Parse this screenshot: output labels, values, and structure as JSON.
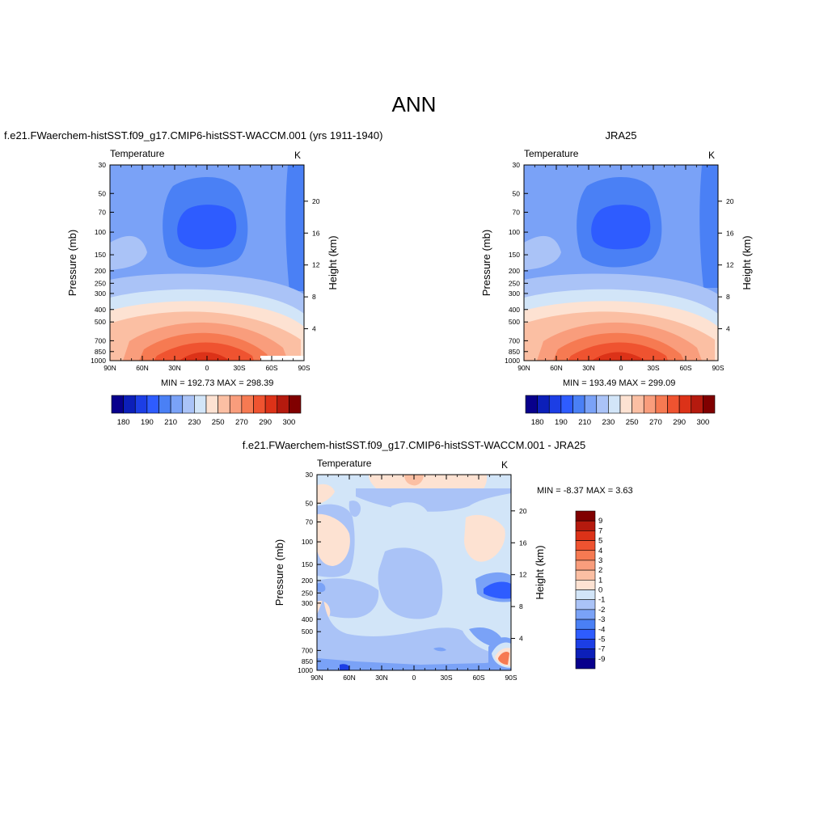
{
  "figure": {
    "title": "ANN"
  },
  "panels": [
    {
      "title": "f.e21.FWaerchem-histSST.f09_g17.CMIP6-histSST-WACCM.001 (yrs 1911-1940)",
      "variable": "Temperature",
      "units": "K",
      "min_max": "MIN = 192.73  MAX = 298.39"
    },
    {
      "title": "JRA25",
      "variable": "Temperature",
      "units": "K",
      "min_max": "MIN = 193.49  MAX = 299.09"
    },
    {
      "title": "f.e21.FWaerchem-histSST.f09_g17.CMIP6-histSST-WACCM.001 - JRA25",
      "variable": "Temperature",
      "units": "K",
      "min_max": "MIN =  -8.37  MAX =   3.63"
    }
  ],
  "chart_data": [
    {
      "type": "heatmap",
      "title": "Temperature",
      "units": "K",
      "xlabel": "",
      "ylabel": "Pressure (mb)",
      "ylabel_right": "Height (km)",
      "x_ticks": [
        "90N",
        "60N",
        "30N",
        "0",
        "30S",
        "60S",
        "90S"
      ],
      "y_ticks": [
        "30",
        "50",
        "70",
        "100",
        "150",
        "200",
        "250",
        "300",
        "400",
        "500",
        "700",
        "850",
        "1000"
      ],
      "y_right_ticks": [
        "20",
        "16",
        "12",
        "8",
        "4"
      ],
      "log_pressure": true,
      "colorbar_labels": [
        "180",
        "190",
        "210",
        "230",
        "250",
        "270",
        "290",
        "300"
      ],
      "colorbar_orientation": "horizontal",
      "min": 192.73,
      "max": 298.39
    },
    {
      "type": "heatmap",
      "title": "Temperature",
      "units": "K",
      "xlabel": "",
      "ylabel": "Pressure (mb)",
      "ylabel_right": "Height (km)",
      "x_ticks": [
        "90N",
        "60N",
        "30N",
        "0",
        "30S",
        "60S",
        "90S"
      ],
      "y_ticks": [
        "30",
        "50",
        "70",
        "100",
        "150",
        "200",
        "250",
        "300",
        "400",
        "500",
        "700",
        "850",
        "1000"
      ],
      "y_right_ticks": [
        "20",
        "16",
        "12",
        "8",
        "4"
      ],
      "log_pressure": true,
      "colorbar_labels": [
        "180",
        "190",
        "210",
        "230",
        "250",
        "270",
        "290",
        "300"
      ],
      "colorbar_orientation": "horizontal",
      "min": 193.49,
      "max": 299.09
    },
    {
      "type": "heatmap",
      "title": "Temperature",
      "units": "K",
      "xlabel": "",
      "ylabel": "Pressure (mb)",
      "ylabel_right": "Height (km)",
      "x_ticks": [
        "90N",
        "60N",
        "30N",
        "0",
        "30S",
        "60S",
        "90S"
      ],
      "y_ticks": [
        "30",
        "50",
        "70",
        "100",
        "150",
        "200",
        "250",
        "300",
        "400",
        "500",
        "700",
        "850",
        "1000"
      ],
      "y_right_ticks": [
        "20",
        "16",
        "12",
        "8",
        "4"
      ],
      "log_pressure": true,
      "colorbar_labels": [
        "9",
        "7",
        "5",
        "4",
        "3",
        "2",
        "1",
        "0",
        "-1",
        "-2",
        "-3",
        "-4",
        "-5",
        "-7",
        "-9"
      ],
      "colorbar_orientation": "vertical",
      "min": -8.37,
      "max": 3.63
    }
  ],
  "colors": {
    "abs_palette": [
      "#08008c",
      "#0c1fb9",
      "#1c3ee5",
      "#2e5cff",
      "#4a80f5",
      "#7aa2f7",
      "#aac3f7",
      "#d2e5f8",
      "#fde2d2",
      "#fbbfa3",
      "#f99d7c",
      "#f67a52",
      "#ef5330",
      "#dc3218",
      "#b51a0e",
      "#800000"
    ],
    "diff_palette": [
      "#800000",
      "#b51a0e",
      "#dc3218",
      "#ef5330",
      "#f67a52",
      "#f99d7c",
      "#fbbfa3",
      "#fde2d2",
      "#d2e5f8",
      "#aac3f7",
      "#7aa2f7",
      "#4a80f5",
      "#2e5cff",
      "#1c3ee5",
      "#0c1fb9",
      "#08008c"
    ]
  }
}
